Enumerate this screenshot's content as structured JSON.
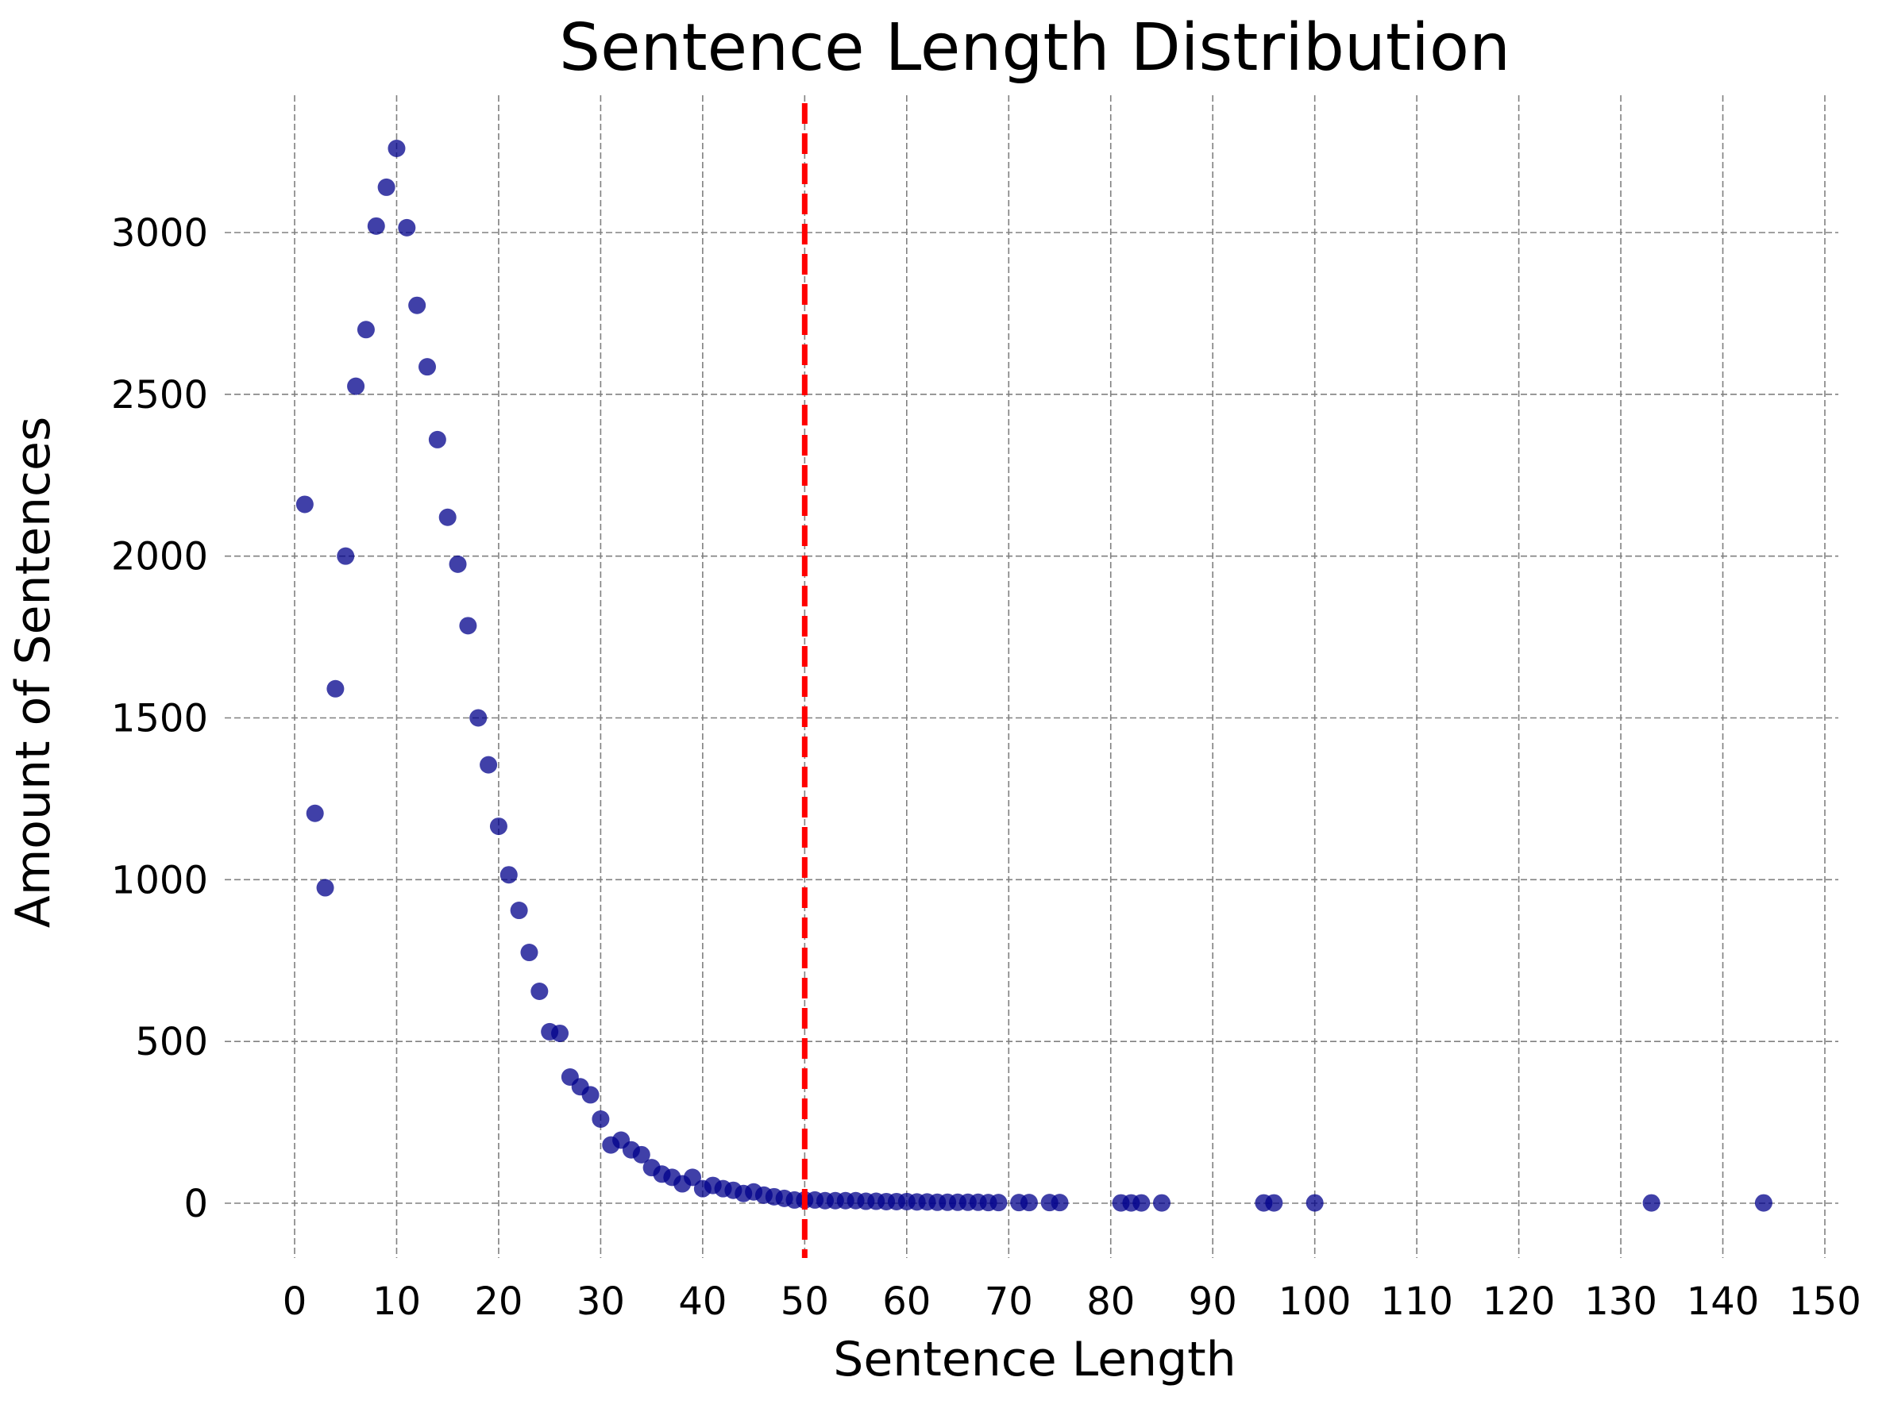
{
  "chart_data": {
    "type": "scatter",
    "title": "Sentence Length Distribution",
    "xlabel": "Sentence Length",
    "ylabel": "Amount of Sentences",
    "xlim": [
      -2,
      151
    ],
    "ylim": [
      -160,
      3440
    ],
    "xticks": [
      0,
      10,
      20,
      30,
      40,
      50,
      60,
      70,
      80,
      90,
      100,
      110,
      120,
      130,
      140,
      150
    ],
    "yticks": [
      0,
      500,
      1000,
      1500,
      2000,
      2500,
      3000
    ],
    "grid": true,
    "reference_line": {
      "x": 50,
      "color": "#ff0000",
      "style": "dashed"
    },
    "point_color": "#00008b",
    "x": [
      1,
      2,
      3,
      4,
      5,
      6,
      7,
      8,
      9,
      10,
      11,
      12,
      13,
      14,
      15,
      16,
      17,
      18,
      19,
      20,
      21,
      22,
      23,
      24,
      25,
      26,
      27,
      28,
      29,
      30,
      31,
      32,
      33,
      34,
      35,
      36,
      37,
      38,
      39,
      40,
      41,
      42,
      43,
      44,
      45,
      46,
      47,
      48,
      49,
      50,
      51,
      52,
      53,
      54,
      55,
      56,
      57,
      58,
      59,
      60,
      61,
      62,
      63,
      64,
      65,
      66,
      67,
      68,
      69,
      71,
      72,
      74,
      75,
      81,
      82,
      83,
      85,
      95,
      96,
      100,
      133,
      144
    ],
    "y": [
      2160,
      1205,
      975,
      1590,
      2000,
      2525,
      2700,
      3020,
      3140,
      3260,
      3015,
      2775,
      2585,
      2360,
      2120,
      1975,
      1785,
      1500,
      1355,
      1165,
      1015,
      905,
      775,
      655,
      530,
      525,
      390,
      360,
      335,
      260,
      180,
      195,
      165,
      150,
      110,
      90,
      80,
      60,
      80,
      45,
      55,
      45,
      40,
      30,
      35,
      25,
      20,
      15,
      10,
      10,
      10,
      8,
      8,
      8,
      8,
      6,
      6,
      5,
      5,
      5,
      4,
      4,
      3,
      3,
      3,
      3,
      3,
      2,
      2,
      2,
      2,
      2,
      2,
      1,
      1,
      1,
      1,
      1,
      1,
      1,
      1,
      1
    ]
  }
}
